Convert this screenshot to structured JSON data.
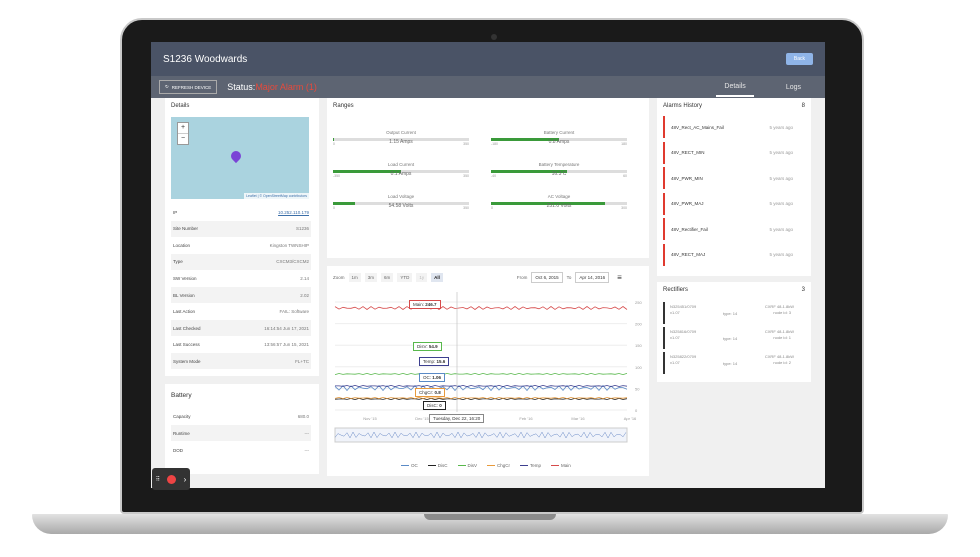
{
  "header": {
    "title": "S1236 Woodwards",
    "back_label": "Back"
  },
  "subbar": {
    "refresh_label": "REFRESH DEVICE",
    "status_label": "Status:",
    "status_value": "Major Alarm (1)",
    "tabs": [
      "Details",
      "Logs"
    ]
  },
  "details": {
    "heading": "Details",
    "map": {
      "zoom_in": "+",
      "zoom_out": "−",
      "attribution": "Leaflet | © OpenStreetMap contributors"
    },
    "rows": [
      {
        "label": "IP",
        "value": "10.252.110.179"
      },
      {
        "label": "Site Number",
        "value": "S1236"
      },
      {
        "label": "Location",
        "value": "Kingston TWNSHIP"
      },
      {
        "label": "Type",
        "value": "CXCM3/CXCM2"
      },
      {
        "label": "SW Version",
        "value": "2.14"
      },
      {
        "label": "BL Version",
        "value": "2.02"
      },
      {
        "label": "Last Action",
        "value": "FAIL: Software"
      },
      {
        "label": "Last Checked",
        "value": "16:14:54 Jun 17, 2021"
      },
      {
        "label": "Last Success",
        "value": "13:56:57 Jun 15, 2021"
      },
      {
        "label": "System Mode",
        "value": "FL+TC"
      }
    ]
  },
  "battery": {
    "heading": "Battery",
    "rows": [
      {
        "label": "Capacity",
        "value": "680.0"
      },
      {
        "label": "Runtime",
        "value": "---"
      },
      {
        "label": "DOD",
        "value": "---"
      }
    ]
  },
  "ranges": {
    "heading": "Ranges",
    "gauges": [
      {
        "label": "Output Current",
        "value": "1.15 Amps",
        "min": "0",
        "max": "350",
        "fraction": 0.006
      },
      {
        "label": "Battery Current",
        "value": "0.8 Amps",
        "min": "-180",
        "max": "180",
        "fraction": 0.5
      },
      {
        "label": "Load Current",
        "value": "0.1 Amps",
        "min": "-350",
        "max": "350",
        "fraction": 0.5
      },
      {
        "label": "Battery Temperature",
        "value": "16.3 C",
        "min": "-40",
        "max": "60",
        "fraction": 0.56
      },
      {
        "label": "Load Voltage",
        "value": "54.58 Volts",
        "min": "0",
        "max": "350",
        "fraction": 0.16
      },
      {
        "label": "AC Voltage",
        "value": "251.0 Volts",
        "min": "0",
        "max": "300",
        "fraction": 0.84
      }
    ]
  },
  "chart_controls": {
    "zoom_label": "Zoom",
    "buttons": [
      "1m",
      "3m",
      "6m",
      "YTD",
      "1y",
      "All"
    ],
    "from_label": "From",
    "from_value": "Oct 6, 2015",
    "to_label": "To",
    "to_value": "Apr 14, 2016",
    "menu_icon": "hamburger-icon"
  },
  "chart_data": {
    "type": "line",
    "x_ticks": [
      "Nov '15",
      "Dec '15",
      "Jan '16",
      "Feb '16",
      "Mar '16",
      "Apr '16"
    ],
    "y_ticks": [
      "250",
      "200",
      "150",
      "100",
      "50",
      "0"
    ],
    "series": [
      {
        "name": "OC",
        "color": "#5a8ac6",
        "tooltip": "1.06"
      },
      {
        "name": "DisC",
        "color": "#222222",
        "tooltip": "0"
      },
      {
        "name": "DisV",
        "color": "#58b84c",
        "tooltip": "54.9"
      },
      {
        "name": "ChgCr",
        "color": "#e89a3c",
        "tooltip": "0.8"
      },
      {
        "name": "Temp",
        "color": "#3d3f8f",
        "tooltip": "15.6"
      },
      {
        "name": "Main",
        "color": "#d64a4a",
        "tooltip": "246.7"
      }
    ],
    "tooltip_date": "Tuesday, Dec 22, 16:20",
    "tooltip_labels": [
      "Main",
      "DisV",
      "Temp",
      "OC",
      "ChgCr",
      "DisC"
    ]
  },
  "alarms": {
    "heading": "Alarms History",
    "count": "8",
    "items": [
      {
        "name": "48V_Rect_AC_Mains_Fail",
        "time": "5 years ago"
      },
      {
        "name": "48V_RECT_MIN",
        "time": "5 years ago"
      },
      {
        "name": "48V_PWR_MIN",
        "time": "5 years ago"
      },
      {
        "name": "48V_PWR_MAJ",
        "time": "5 years ago"
      },
      {
        "name": "48V_Rectifier_Fail",
        "time": "5 years ago"
      },
      {
        "name": "48V_RECT_MAJ",
        "time": "5 years ago"
      }
    ]
  },
  "rectifiers": {
    "heading": "Rectifiers",
    "count": "3",
    "items": [
      {
        "serial": "N325451/0709",
        "ver": "v1.07",
        "type": "type: 14",
        "model": "CXRF 48-1.8kW",
        "node": "node id: 3"
      },
      {
        "serial": "N325816/0709",
        "ver": "v1.07",
        "type": "type: 14",
        "model": "CXRF 48-1.8kW",
        "node": "node id: 1"
      },
      {
        "serial": "N325822/0709",
        "ver": "v1.07",
        "type": "type: 14",
        "model": "CXRF 48-1.8kW",
        "node": "node id: 2"
      }
    ]
  }
}
